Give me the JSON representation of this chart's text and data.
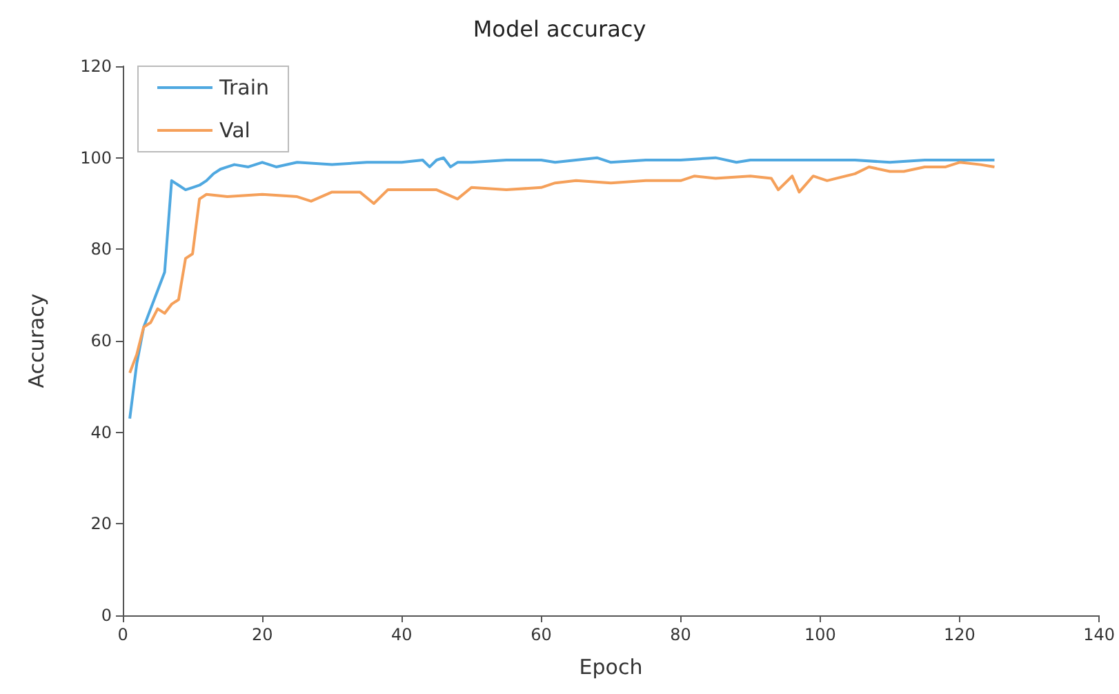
{
  "chart_data": {
    "type": "line",
    "title": "Model accuracy",
    "xlabel": "Epoch",
    "ylabel": "Accuracy",
    "xlim": [
      0,
      140
    ],
    "xticks": [
      0,
      20,
      40,
      60,
      80,
      100,
      120,
      140
    ],
    "ylim": [
      0,
      120
    ],
    "yticks": [
      0,
      20,
      40,
      60,
      80,
      100,
      120
    ],
    "grid": false,
    "legend": "top left",
    "marker": "none",
    "line_style": "solid",
    "series": [
      {
        "name": "Train",
        "color": "#4fa8e0",
        "x": [
          1,
          2,
          3,
          4,
          5,
          6,
          7,
          8,
          9,
          10,
          11,
          12,
          13,
          14,
          15,
          16,
          18,
          20,
          22,
          25,
          30,
          35,
          40,
          43,
          44,
          45,
          46,
          47,
          48,
          50,
          55,
          60,
          62,
          65,
          68,
          70,
          75,
          80,
          85,
          88,
          90,
          95,
          100,
          105,
          110,
          115,
          120,
          125
        ],
        "values": [
          43,
          55,
          63,
          67,
          71,
          75,
          95,
          94,
          93,
          93.5,
          94,
          95,
          96.5,
          97.5,
          98,
          98.5,
          98,
          99,
          98,
          99,
          98.5,
          99,
          99,
          99.5,
          98,
          99.5,
          100,
          98,
          99,
          99,
          99.5,
          99.5,
          99,
          99.5,
          100,
          99,
          99.5,
          99.5,
          100,
          99,
          99.5,
          99.5,
          99.5,
          99.5,
          99,
          99.5,
          99.5,
          99.5
        ]
      },
      {
        "name": "Val",
        "color": "#f5a05a",
        "x": [
          1,
          2,
          3,
          4,
          5,
          6,
          7,
          8,
          9,
          10,
          11,
          12,
          15,
          20,
          25,
          27,
          30,
          34,
          36,
          38,
          45,
          48,
          50,
          55,
          60,
          62,
          65,
          70,
          75,
          80,
          82,
          85,
          90,
          93,
          94,
          96,
          97,
          99,
          101,
          105,
          107,
          110,
          112,
          115,
          118,
          120,
          123,
          125
        ],
        "values": [
          53,
          57,
          63,
          64,
          67,
          66,
          68,
          69,
          78,
          79,
          91,
          92,
          91.5,
          92,
          91.5,
          90.5,
          92.5,
          92.5,
          90,
          93,
          93,
          91,
          93.5,
          93,
          93.5,
          94.5,
          95,
          94.5,
          95,
          95,
          96,
          95.5,
          96,
          95.5,
          93,
          96,
          92.5,
          96,
          95,
          96.5,
          98,
          97,
          97,
          98,
          98,
          99,
          98.5,
          98
        ]
      }
    ]
  }
}
